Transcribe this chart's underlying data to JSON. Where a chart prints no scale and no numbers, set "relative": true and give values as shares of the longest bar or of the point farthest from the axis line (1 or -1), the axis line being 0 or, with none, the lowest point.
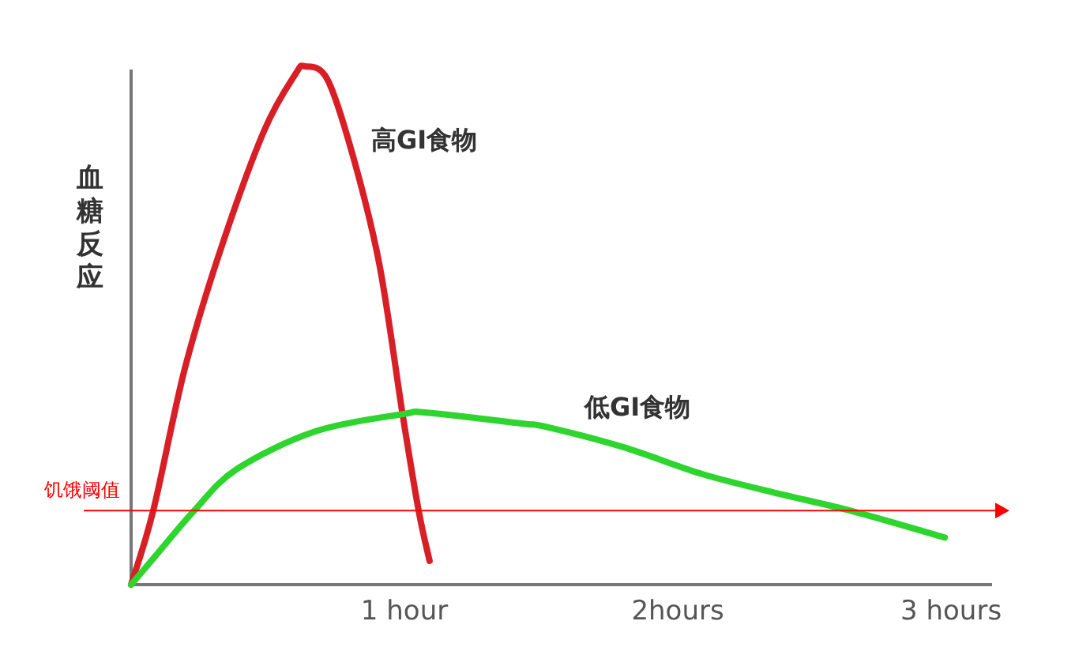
{
  "chart_data": {
    "type": "line",
    "ylabel": "血糖反应",
    "relative": true,
    "xlim": [
      0,
      3.15
    ],
    "xticks": [
      {
        "value": 1,
        "label": "1 hour"
      },
      {
        "value": 2,
        "label": "2hours"
      },
      {
        "value": 3,
        "label": "3 hours"
      }
    ],
    "series": [
      {
        "name": "高GI食物",
        "color": "#d91f26",
        "x": [
          0,
          0.081,
          0.197,
          0.329,
          0.486,
          0.601,
          0.636,
          0.717,
          0.809,
          0.908,
          0.994,
          1.052,
          1.092
        ],
        "values": [
          0,
          0.143,
          0.418,
          0.649,
          0.875,
          0.985,
          1,
          0.976,
          0.832,
          0.619,
          0.326,
          0.143,
          0.046
        ]
      },
      {
        "name": "低GI食物",
        "color": "#2ed52e",
        "x": [
          0,
          0.098,
          0.231,
          0.387,
          0.676,
          0.994,
          1.081,
          1.428,
          1.514,
          1.803,
          2.092,
          2.382,
          2.63,
          2.977
        ],
        "values": [
          0,
          0.061,
          0.143,
          0.223,
          0.296,
          0.329,
          0.332,
          0.311,
          0.305,
          0.265,
          0.213,
          0.174,
          0.143,
          0.091
        ]
      }
    ],
    "ref_lines": [
      {
        "axis": "y",
        "value": 0.143,
        "label": "饥饿阈值",
        "color": "#ff0000"
      }
    ]
  }
}
